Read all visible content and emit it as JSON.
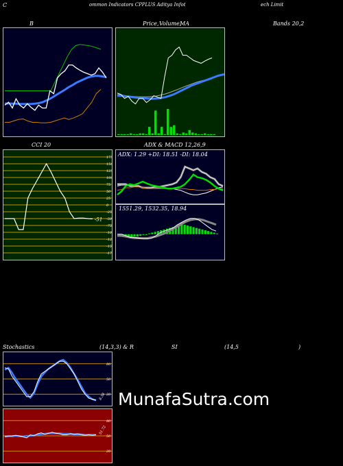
{
  "header": {
    "part1": "C",
    "part2": "ommon  Indicators CPPLUS Aditya  Infot",
    "part3": "ech Limit"
  },
  "labels": {
    "bands": "B",
    "price": "Price,",
    "volume": "Volume,",
    "ma": "MA",
    "bands_right": "Bands 20,2",
    "cci": "CCI 20",
    "adx_title": "ADX  & MACD 12,26,9",
    "adx_values": "ADX: 1.29  +DI: 18.51 -DI: 18.04",
    "macd_values": "1551.29,   1532.35,   18.94",
    "stoch": "Stochastics",
    "stoch_params": "(14,3,3) & R",
    "rsi": "SI",
    "rsi_params": "(14,5",
    "rsi_close": ")"
  },
  "watermark": "MunafaSutra.com",
  "chart_data": [
    {
      "type": "line",
      "name": "bollinger",
      "series": [
        {
          "values": [
            1650,
            1660,
            1640,
            1672,
            1650,
            1640,
            1655,
            1642,
            1632,
            1650,
            1640,
            1640,
            1700,
            1690,
            1745,
            1760,
            1770,
            1790,
            1790,
            1780,
            1772,
            1765,
            1760,
            1755,
            1760,
            1780,
            1765,
            1745
          ]
        },
        {
          "values": [
            1655,
            1656,
            1655,
            1655,
            1654,
            1654,
            1654,
            1654,
            1655,
            1657,
            1660,
            1666,
            1672,
            1680,
            1688,
            1696,
            1704,
            1713,
            1720,
            1728,
            1734,
            1740,
            1746,
            1750,
            1752,
            1752,
            1750,
            1748
          ]
        },
        {
          "values": [
            1700,
            1700,
            1700,
            1700,
            1700,
            1700,
            1700,
            1700,
            1700,
            1700,
            1700,
            1700,
            1730,
            1760,
            1790,
            1820,
            1845,
            1858,
            1862,
            1860,
            1858,
            1855,
            1850,
            1845
          ]
        },
        {
          "values": [
            1590,
            1590,
            1595,
            1600,
            1602,
            1595,
            1590,
            1590,
            1588,
            1588,
            1590,
            1595,
            1600,
            1605,
            1600,
            1605,
            1612,
            1620,
            1640,
            1660,
            1690,
            1705
          ]
        }
      ]
    },
    {
      "type": "line",
      "name": "price-volume-ma",
      "series": [
        {
          "values": [
            1660,
            1655,
            1640,
            1648,
            1630,
            1620,
            1640,
            1640,
            1625,
            1635,
            1650,
            1645,
            1640,
            1720,
            1790,
            1800,
            1820,
            1830,
            1800,
            1800,
            1790,
            1780,
            1775,
            1770,
            1778,
            1785,
            1790
          ]
        },
        {
          "values": [
            1650,
            1650,
            1648,
            1646,
            1644,
            1642,
            1641,
            1640,
            1639,
            1640,
            1642,
            1645,
            1650,
            1656,
            1664,
            1672,
            1680,
            1688,
            1694,
            1700,
            1706,
            1712,
            1718,
            1724,
            1728,
            1730,
            1732
          ]
        },
        {
          "values": [
            1655,
            1653,
            1650,
            1648,
            1647,
            1646,
            1646,
            1646,
            1647,
            1649,
            1652,
            1656,
            1661,
            1667,
            1673,
            1680,
            1686,
            1692,
            1698,
            1703,
            1707,
            1710,
            1712
          ]
        }
      ],
      "volume": [
        1,
        1,
        1,
        1,
        2,
        1,
        1,
        2,
        2,
        1,
        10,
        2,
        30,
        2,
        10,
        1,
        32,
        10,
        12,
        2,
        1,
        3,
        2,
        6,
        3,
        2,
        1,
        1,
        2,
        1,
        1,
        1
      ]
    },
    {
      "type": "line",
      "name": "cci",
      "yticks": [
        175,
        150,
        125,
        100,
        75,
        50,
        25,
        0,
        -25,
        -50,
        -75,
        -100,
        -125,
        -150,
        -175
      ],
      "values": [
        -50,
        -50,
        -50,
        -90,
        -90,
        25,
        60,
        90,
        120,
        150,
        120,
        85,
        50,
        25,
        -25,
        -50,
        -48,
        -48,
        -50,
        -51
      ],
      "last_label": "-51"
    },
    {
      "type": "line",
      "name": "adx",
      "series": [
        {
          "values": [
            10,
            14,
            20,
            22,
            21,
            23,
            25,
            23,
            21,
            20,
            19,
            18,
            17,
            17,
            18,
            19,
            22,
            27,
            33,
            30,
            29,
            27,
            24,
            20,
            17,
            15
          ]
        },
        {
          "values": [
            22,
            22,
            22,
            20,
            20,
            20,
            18,
            18,
            18,
            19,
            19,
            20,
            21,
            22,
            24,
            30,
            42,
            40,
            38,
            40,
            36,
            34,
            30,
            28,
            22,
            20
          ]
        },
        {
          "values": [
            15,
            16,
            18,
            18,
            19,
            19,
            18,
            17,
            17,
            17,
            17,
            17,
            17,
            17,
            17,
            17,
            17,
            16,
            16,
            15,
            15,
            15,
            16,
            16,
            17,
            17
          ]
        },
        {
          "values": [
            20,
            21,
            21,
            21,
            20,
            20,
            19,
            18,
            18,
            18,
            18,
            18,
            17,
            17,
            16,
            15,
            13,
            11,
            10,
            10,
            11,
            12,
            14,
            16,
            18,
            19
          ]
        }
      ]
    },
    {
      "type": "line",
      "name": "macd",
      "series": [
        {
          "values": [
            0,
            0,
            -2,
            -4,
            -4,
            -5,
            -6,
            -6,
            -5,
            -2,
            2,
            4,
            6,
            8,
            12,
            15,
            18,
            20,
            20,
            18,
            14,
            10,
            6,
            4
          ]
        },
        {
          "values": [
            -2,
            -2,
            -3,
            -4,
            -5,
            -5,
            -5,
            -5,
            -4,
            -3,
            -1,
            1,
            4,
            7,
            10,
            13,
            16,
            18,
            19,
            19,
            18,
            16,
            14,
            12
          ]
        }
      ],
      "histogram": [
        -2,
        -2,
        -3,
        -3,
        -4,
        -3,
        -3,
        -2,
        -1,
        -1,
        1,
        2,
        3,
        4,
        5,
        6,
        7,
        8,
        9,
        10,
        11,
        12,
        12,
        11,
        10,
        9,
        8,
        7,
        6,
        5,
        4,
        3,
        2,
        1
      ]
    },
    {
      "type": "line",
      "name": "stochastics",
      "yticks": [
        80,
        50,
        20
      ],
      "series": [
        {
          "values": [
            72,
            70,
            55,
            45,
            35,
            25,
            15,
            15,
            25,
            45,
            60,
            65,
            70,
            75,
            80,
            85,
            85,
            80,
            70,
            60,
            45,
            30,
            20,
            12,
            10,
            8
          ]
        },
        {
          "values": [
            68,
            72,
            62,
            50,
            40,
            30,
            20,
            13,
            22,
            40,
            55,
            63,
            70,
            75,
            80,
            85,
            88,
            82,
            72,
            60,
            48,
            35,
            22,
            15,
            10,
            8
          ]
        }
      ],
      "last_label": "8.38"
    },
    {
      "type": "line",
      "name": "rsi",
      "yticks": [
        80,
        50,
        20
      ],
      "series": [
        {
          "values": [
            49,
            50,
            50,
            51,
            50,
            48,
            46,
            52,
            50,
            54,
            56,
            53,
            55,
            57,
            55,
            54,
            52,
            52,
            54,
            53,
            54,
            52,
            51,
            52,
            51,
            52
          ]
        },
        {
          "values": [
            48,
            49,
            49,
            50,
            49,
            49,
            50,
            50,
            51,
            52,
            53,
            54,
            55,
            55,
            55,
            55,
            54,
            54,
            54,
            53,
            53,
            53,
            52,
            52,
            52,
            52
          ]
        }
      ],
      "last_label": "51.72"
    }
  ]
}
